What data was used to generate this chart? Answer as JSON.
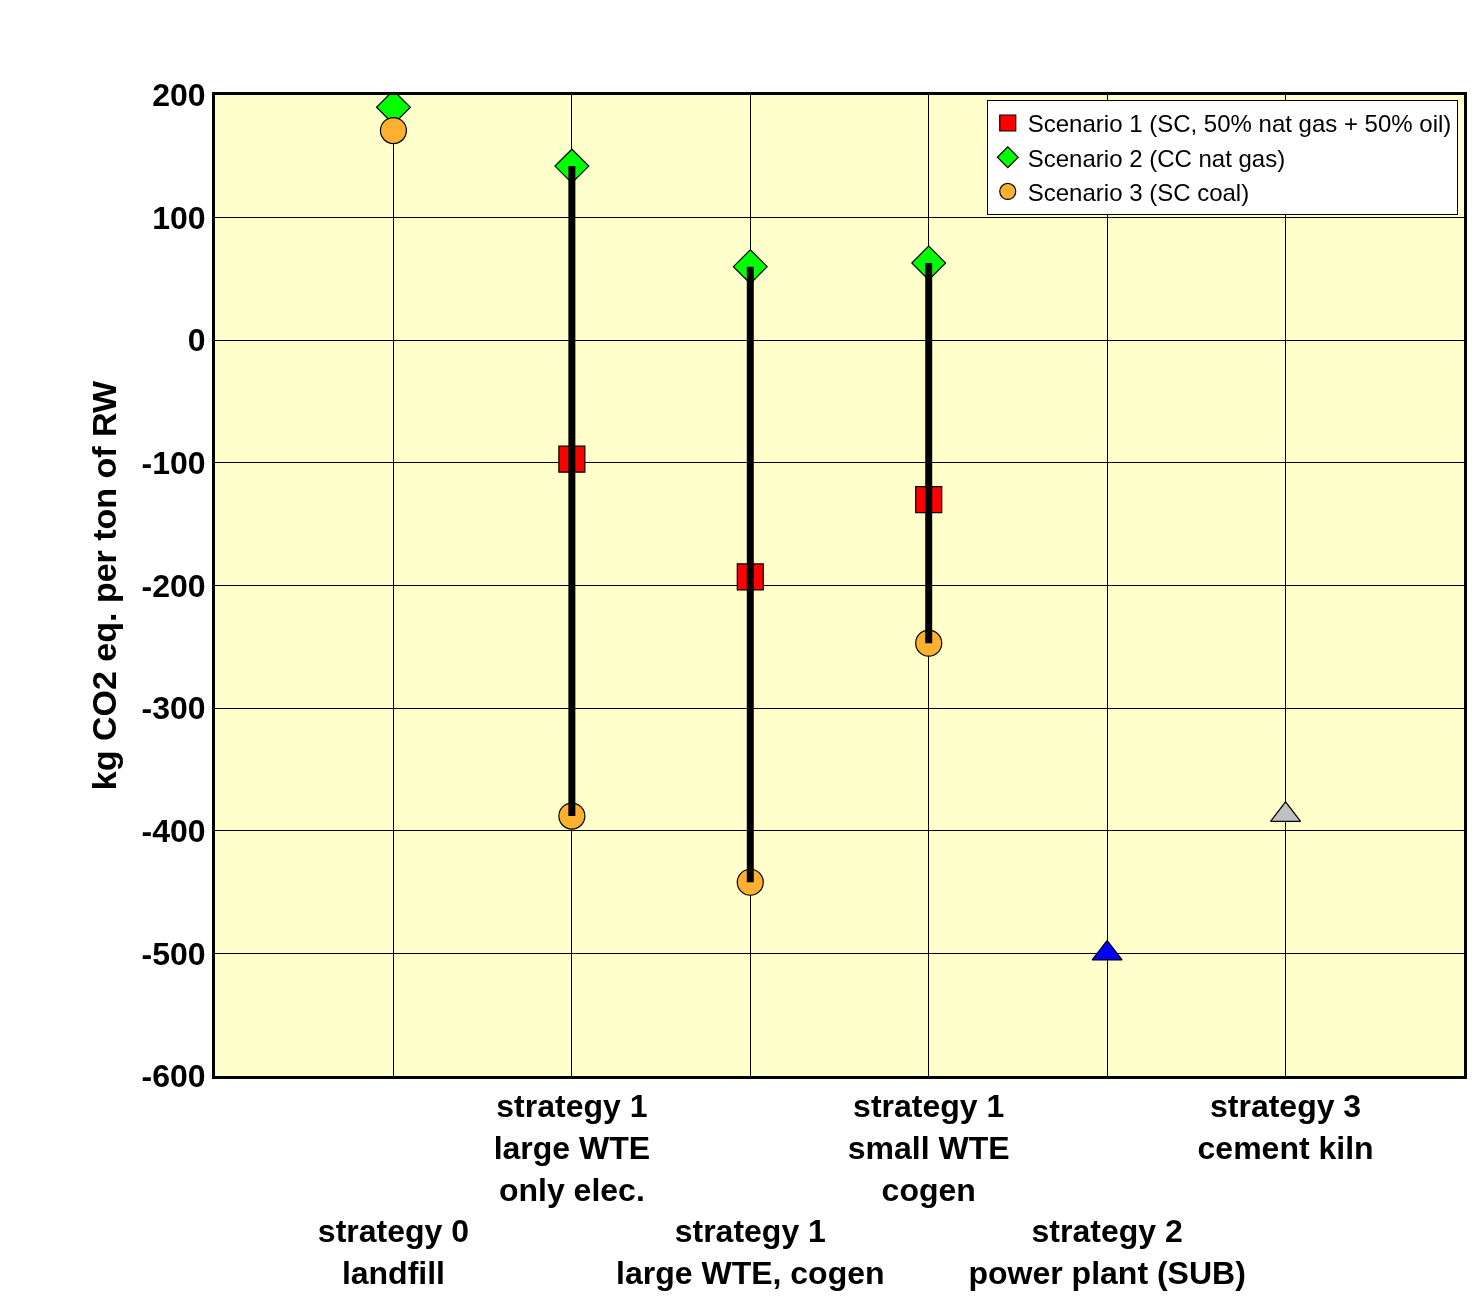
{
  "chart_data": {
    "type": "scatter",
    "ylabel": "kg CO2 eq. per ton of RW",
    "categories": [
      "strategy 0\nlandfill",
      "strategy 1\nlarge WTE\nonly elec.",
      "strategy 1\nlarge WTE, cogen",
      "strategy 1\nsmall WTE\ncogen",
      "strategy 2\npower plant (SUB)",
      "strategy 3\ncement kiln"
    ],
    "ylim": [
      -600,
      200
    ],
    "yticks": [
      -600,
      -500,
      -400,
      -300,
      -200,
      -100,
      0,
      100,
      200
    ],
    "grid": true,
    "legend": "top right",
    "series": [
      {
        "type": "line",
        "color": "#000000",
        "marker": "none",
        "x": [
          "strategy 1\nlarge WTE\nonly elec.",
          "strategy 1\nlarge WTE\nonly elec."
        ],
        "values": [
          142,
          -388
        ]
      },
      {
        "type": "line",
        "color": "#000000",
        "marker": "none",
        "x": [
          "strategy 1\nlarge WTE, cogen",
          "strategy 1\nlarge WTE, cogen"
        ],
        "values": [
          60,
          -442
        ]
      },
      {
        "type": "line",
        "color": "#000000",
        "marker": "none",
        "x": [
          "strategy 1\nsmall WTE\ncogen",
          "strategy 1\nsmall WTE\ncogen"
        ],
        "values": [
          63,
          -247
        ]
      },
      {
        "name": "Scenario 1 (SC, 50% nat gas + 50% oil)",
        "color": "#ff0000",
        "marker": "square",
        "values": [
          null,
          -97,
          -193,
          -130,
          null,
          null
        ]
      },
      {
        "name": "Scenario 2 (CC nat gas)",
        "color": "#00ff00",
        "marker": "diamond",
        "values": [
          190,
          142,
          60,
          63,
          null,
          null
        ]
      },
      {
        "name": "Scenario 3 (SC coal)",
        "color": "#ffb030",
        "marker": "circle",
        "values": [
          171,
          -388,
          -442,
          -247,
          null,
          null
        ]
      },
      {
        "color": "#0000ff",
        "marker": "triangle",
        "values": [
          null,
          null,
          null,
          null,
          -500,
          null
        ]
      },
      {
        "color": "#c0c0c0",
        "marker": "triangle",
        "values": [
          null,
          null,
          null,
          null,
          null,
          -387
        ]
      }
    ]
  }
}
